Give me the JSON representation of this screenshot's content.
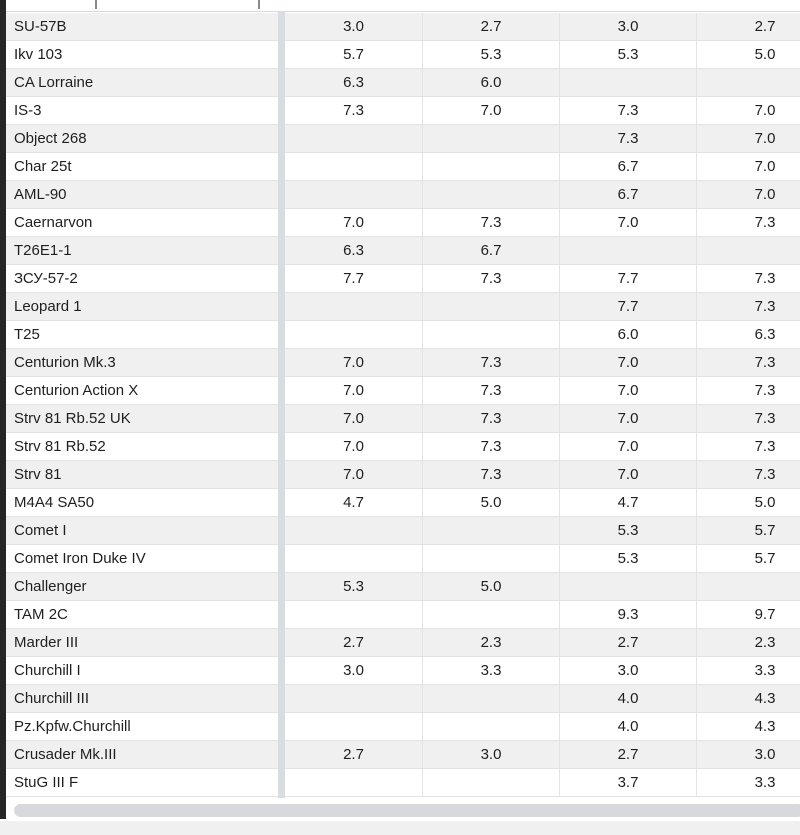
{
  "table": {
    "description": "vehicle battle-rating table, four value columns, headers scrolled out of view",
    "rows": [
      {
        "name": "SU-57B",
        "values": [
          "3.0",
          "2.7",
          "3.0",
          "2.7"
        ]
      },
      {
        "name": "Ikv 103",
        "values": [
          "5.7",
          "5.3",
          "5.3",
          "5.0"
        ]
      },
      {
        "name": "CA Lorraine",
        "values": [
          "6.3",
          "6.0",
          "",
          ""
        ]
      },
      {
        "name": "IS-3",
        "values": [
          "7.3",
          "7.0",
          "7.3",
          "7.0"
        ]
      },
      {
        "name": "Object 268",
        "values": [
          "",
          "",
          "7.3",
          "7.0"
        ]
      },
      {
        "name": "Char 25t",
        "values": [
          "",
          "",
          "6.7",
          "7.0"
        ]
      },
      {
        "name": "AML-90",
        "values": [
          "",
          "",
          "6.7",
          "7.0"
        ]
      },
      {
        "name": "Caernarvon",
        "values": [
          "7.0",
          "7.3",
          "7.0",
          "7.3"
        ]
      },
      {
        "name": "T26E1-1",
        "values": [
          "6.3",
          "6.7",
          "",
          ""
        ]
      },
      {
        "name": "ЗСУ-57-2",
        "values": [
          "7.7",
          "7.3",
          "7.7",
          "7.3"
        ]
      },
      {
        "name": "Leopard 1",
        "values": [
          "",
          "",
          "7.7",
          "7.3"
        ]
      },
      {
        "name": "T25",
        "values": [
          "",
          "",
          "6.0",
          "6.3"
        ]
      },
      {
        "name": "Centurion Mk.3",
        "values": [
          "7.0",
          "7.3",
          "7.0",
          "7.3"
        ]
      },
      {
        "name": "Centurion Action X",
        "values": [
          "7.0",
          "7.3",
          "7.0",
          "7.3"
        ]
      },
      {
        "name": "Strv 81 Rb.52 UK",
        "values": [
          "7.0",
          "7.3",
          "7.0",
          "7.3"
        ]
      },
      {
        "name": "Strv 81 Rb.52",
        "values": [
          "7.0",
          "7.3",
          "7.0",
          "7.3"
        ]
      },
      {
        "name": "Strv 81",
        "values": [
          "7.0",
          "7.3",
          "7.0",
          "7.3"
        ]
      },
      {
        "name": "M4A4 SA50",
        "values": [
          "4.7",
          "5.0",
          "4.7",
          "5.0"
        ]
      },
      {
        "name": "Comet I",
        "values": [
          "",
          "",
          "5.3",
          "5.7"
        ]
      },
      {
        "name": "Comet Iron Duke IV",
        "values": [
          "",
          "",
          "5.3",
          "5.7"
        ]
      },
      {
        "name": "Challenger",
        "values": [
          "5.3",
          "5.0",
          "",
          ""
        ]
      },
      {
        "name": "TAM 2C",
        "values": [
          "",
          "",
          "9.3",
          "9.7"
        ]
      },
      {
        "name": "Marder III",
        "values": [
          "2.7",
          "2.3",
          "2.7",
          "2.3"
        ]
      },
      {
        "name": "Churchill I",
        "values": [
          "3.0",
          "3.3",
          "3.0",
          "3.3"
        ]
      },
      {
        "name": "Churchill III",
        "values": [
          "",
          "",
          "4.0",
          "4.3"
        ]
      },
      {
        "name": "Pz.Kpfw.Churchill",
        "values": [
          "",
          "",
          "4.0",
          "4.3"
        ]
      },
      {
        "name": "Crusader Mk.III",
        "values": [
          "2.7",
          "3.0",
          "2.7",
          "3.0"
        ]
      },
      {
        "name": "StuG III F",
        "values": [
          "",
          "",
          "3.7",
          "3.3"
        ]
      }
    ]
  },
  "colors": {
    "row_alt_bg": "#f0f0f0",
    "row_bg": "#ffffff",
    "cell_border": "#e3e3e3",
    "pane_divider": "#d9dce1",
    "dark_edge_bar": "#262626",
    "scrollbar_thumb": "#d8d9dd",
    "bottom_area_bg": "#f0f0f1",
    "text": "#1f1f1f"
  }
}
